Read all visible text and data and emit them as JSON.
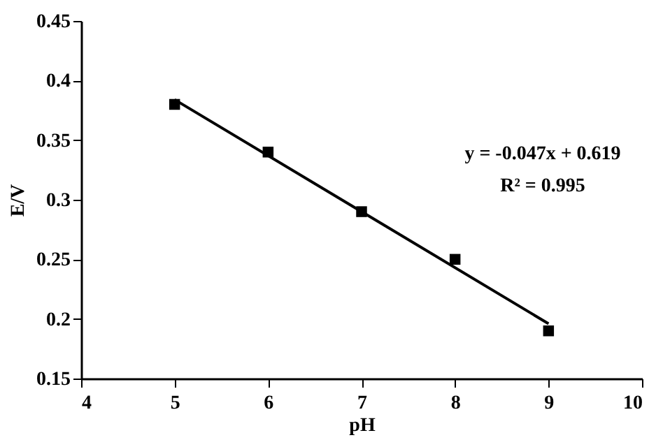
{
  "chart_data": {
    "type": "scatter",
    "xlabel": "pH",
    "ylabel": "E/V",
    "xlim": [
      4,
      10
    ],
    "xticks": [
      4,
      5,
      6,
      7,
      8,
      9,
      10
    ],
    "ylim": [
      0.15,
      0.45
    ],
    "yticks": [
      0.15,
      0.2,
      0.25,
      0.3,
      0.35,
      0.4,
      0.45
    ],
    "grid": false,
    "marker": "square",
    "series": [
      {
        "color": "#000000",
        "x": [
          5,
          6,
          7,
          8,
          9
        ],
        "values": [
          0.38,
          0.34,
          0.29,
          0.25,
          0.19
        ]
      },
      {
        "type": "line",
        "color": "#000000",
        "x": [
          5,
          9
        ],
        "values": [
          0.384,
          0.196
        ],
        "line_style": "solid",
        "marker": "none"
      }
    ],
    "annotations": [
      "y = -0.047x + 0.619",
      "R² = 0.995"
    ]
  }
}
